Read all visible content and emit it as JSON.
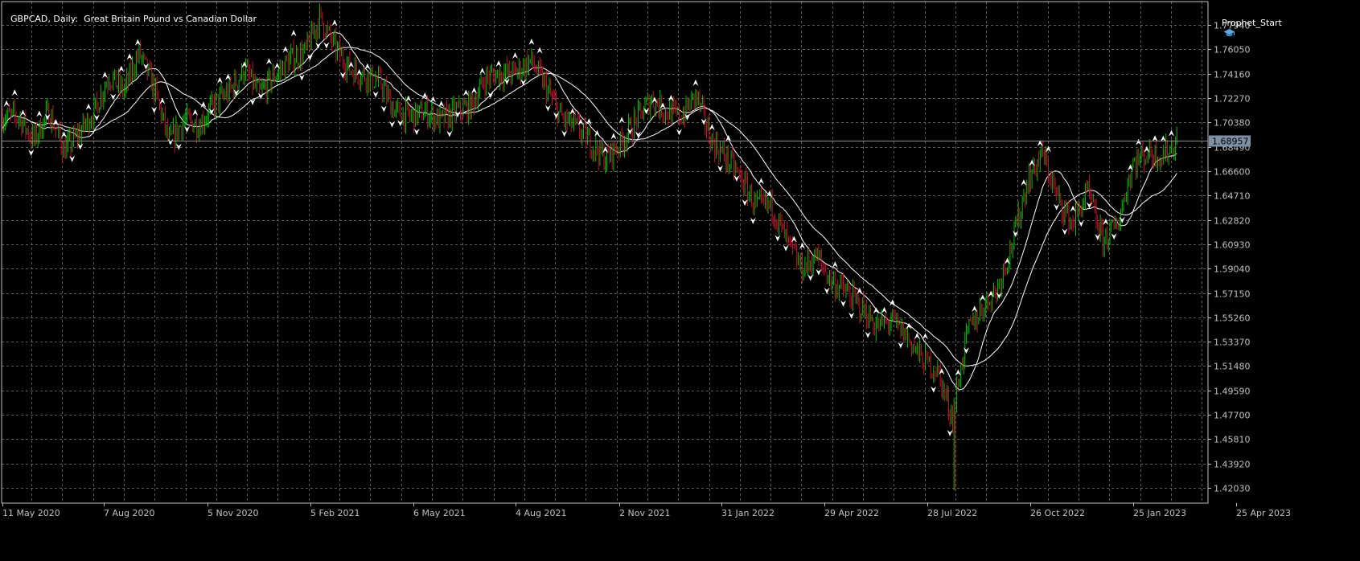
{
  "header": {
    "symbol": "GBPCAD, Daily:",
    "description": "Great Britain Pound vs Canadian Dollar",
    "expert": "Prophet_Start",
    "expert_icon": "graduation-cap-icon"
  },
  "colors": {
    "background": "#000000",
    "grid": "#5c5c5c",
    "axis": "#c0c0c0",
    "bull": "#00c000",
    "bear": "#c8102e",
    "ma": "#ffffff",
    "marker": "#ffffff",
    "price_tag_bg": "#7f8fa6"
  },
  "chart_data": {
    "type": "candlestick",
    "title": "GBPCAD, Daily:  Great Britain Pound vs Canadian Dollar",
    "y_ticks": [
      "1.77940",
      "1.76050",
      "1.74160",
      "1.72270",
      "1.70380",
      "1.68490",
      "1.66600",
      "1.64710",
      "1.62820",
      "1.60930",
      "1.59040",
      "1.57150",
      "1.55260",
      "1.53370",
      "1.51480",
      "1.49590",
      "1.47700",
      "1.45810",
      "1.43920",
      "1.42030"
    ],
    "x_ticks": [
      "11 May 2020",
      "7 Aug 2020",
      "5 Nov 2020",
      "5 Feb 2021",
      "6 May 2021",
      "4 Aug 2021",
      "2 Nov 2021",
      "31 Jan 2022",
      "29 Apr 2022",
      "28 Jul 2022",
      "26 Oct 2022",
      "25 Jan 2023",
      "25 Apr 2023"
    ],
    "ylim": [
      1.4085,
      1.7975
    ],
    "current_price": "1.68957",
    "grid": true,
    "path_points": [
      [
        "2020-05-11",
        1.708
      ],
      [
        "2020-05-25",
        1.69
      ],
      [
        "2020-06-08",
        1.712
      ],
      [
        "2020-06-22",
        1.682
      ],
      [
        "2020-07-06",
        1.695
      ],
      [
        "2020-07-20",
        1.712
      ],
      [
        "2020-08-03",
        1.74
      ],
      [
        "2020-08-17",
        1.728
      ],
      [
        "2020-08-31",
        1.758
      ],
      [
        "2020-09-14",
        1.73
      ],
      [
        "2020-09-28",
        1.688
      ],
      [
        "2020-10-12",
        1.706
      ],
      [
        "2020-10-26",
        1.702
      ],
      [
        "2020-11-09",
        1.718
      ],
      [
        "2020-11-23",
        1.728
      ],
      [
        "2020-12-07",
        1.745
      ],
      [
        "2020-12-21",
        1.725
      ],
      [
        "2021-01-04",
        1.74
      ],
      [
        "2021-01-18",
        1.752
      ],
      [
        "2021-02-01",
        1.758
      ],
      [
        "2021-02-15",
        1.785
      ],
      [
        "2021-03-01",
        1.762
      ],
      [
        "2021-03-15",
        1.745
      ],
      [
        "2021-03-29",
        1.74
      ],
      [
        "2021-04-12",
        1.735
      ],
      [
        "2021-04-26",
        1.712
      ],
      [
        "2021-05-10",
        1.708
      ],
      [
        "2021-05-24",
        1.712
      ],
      [
        "2021-06-07",
        1.705
      ],
      [
        "2021-06-21",
        1.712
      ],
      [
        "2021-07-05",
        1.716
      ],
      [
        "2021-07-19",
        1.738
      ],
      [
        "2021-08-02",
        1.742
      ],
      [
        "2021-08-16",
        1.742
      ],
      [
        "2021-08-30",
        1.752
      ],
      [
        "2021-09-13",
        1.732
      ],
      [
        "2021-09-27",
        1.708
      ],
      [
        "2021-10-11",
        1.7
      ],
      [
        "2021-10-25",
        1.688
      ],
      [
        "2021-11-08",
        1.675
      ],
      [
        "2021-11-22",
        1.688
      ],
      [
        "2021-12-06",
        1.705
      ],
      [
        "2021-12-20",
        1.722
      ],
      [
        "2022-01-03",
        1.712
      ],
      [
        "2022-01-17",
        1.708
      ],
      [
        "2022-01-31",
        1.725
      ],
      [
        "2022-02-14",
        1.69
      ],
      [
        "2022-02-28",
        1.676
      ],
      [
        "2022-03-14",
        1.66
      ],
      [
        "2022-03-28",
        1.638
      ],
      [
        "2022-04-11",
        1.64
      ],
      [
        "2022-04-25",
        1.612
      ],
      [
        "2022-05-09",
        1.59
      ],
      [
        "2022-05-23",
        1.6
      ],
      [
        "2022-06-06",
        1.58
      ],
      [
        "2022-06-20",
        1.572
      ],
      [
        "2022-07-04",
        1.56
      ],
      [
        "2022-07-18",
        1.545
      ],
      [
        "2022-08-01",
        1.55
      ],
      [
        "2022-08-15",
        1.538
      ],
      [
        "2022-08-29",
        1.52
      ],
      [
        "2022-09-12",
        1.512
      ],
      [
        "2022-09-26",
        1.475
      ],
      [
        "2022-10-10",
        1.54
      ],
      [
        "2022-10-24",
        1.56
      ],
      [
        "2022-11-07",
        1.575
      ],
      [
        "2022-11-21",
        1.61
      ],
      [
        "2022-12-05",
        1.658
      ],
      [
        "2022-12-19",
        1.68
      ],
      [
        "2023-01-02",
        1.645
      ],
      [
        "2023-01-16",
        1.625
      ],
      [
        "2023-01-30",
        1.65
      ],
      [
        "2023-02-13",
        1.612
      ],
      [
        "2023-02-27",
        1.625
      ],
      [
        "2023-03-13",
        1.672
      ],
      [
        "2023-03-27",
        1.68
      ],
      [
        "2023-04-10",
        1.678
      ],
      [
        "2023-04-24",
        1.69
      ]
    ],
    "crash_low": [
      "2022-09-28",
      1.4185
    ]
  }
}
